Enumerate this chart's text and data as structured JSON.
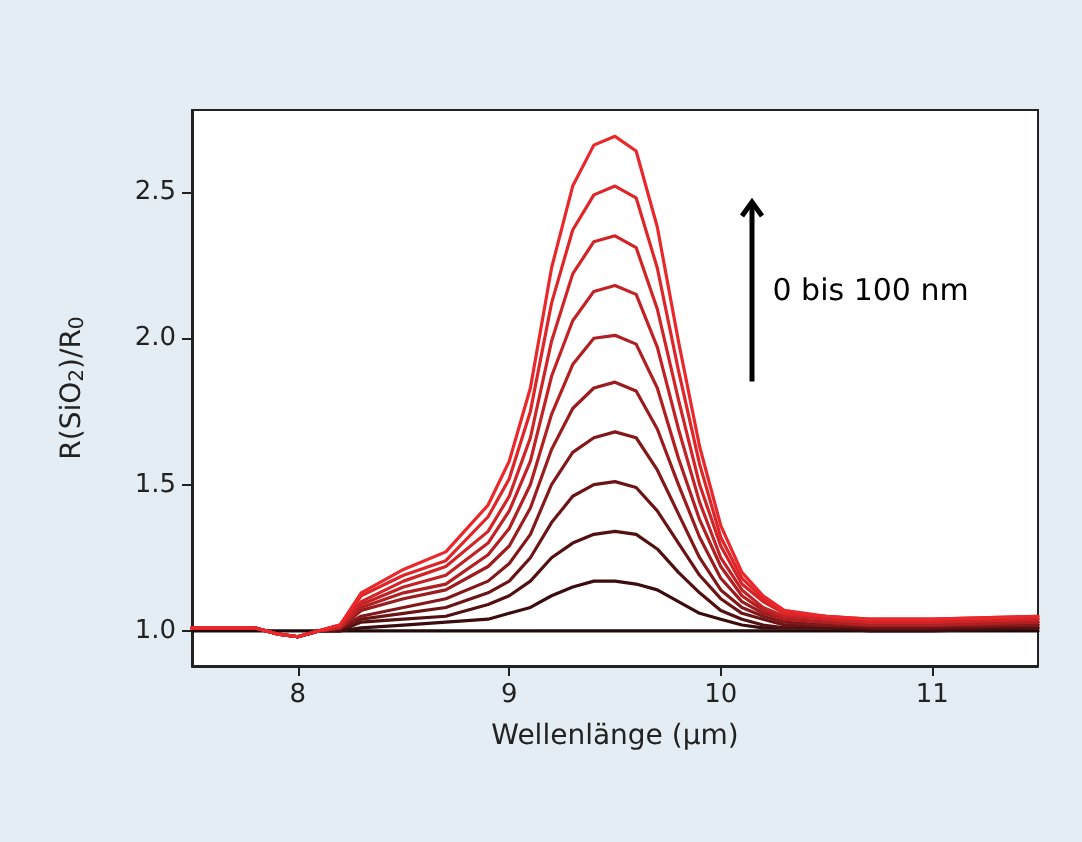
{
  "chart_data": {
    "type": "line",
    "xlabel": "Wellenlänge (µm)",
    "ylabel": "R(SiO$_{2}$)/R$_{0}$",
    "annotations": [
      "0 bis 100 nm"
    ],
    "x": [
      7.5,
      7.7,
      7.8,
      7.9,
      8.0,
      8.1,
      8.2,
      8.3,
      8.5,
      8.7,
      8.9,
      9.0,
      9.1,
      9.2,
      9.3,
      9.4,
      9.5,
      9.6,
      9.7,
      9.8,
      9.9,
      10.0,
      10.1,
      10.2,
      10.3,
      10.5,
      10.7,
      11.0,
      11.5
    ],
    "series": [
      {
        "color": "#1e0a0a",
        "values": [
          1,
          1,
          1,
          1,
          1,
          1,
          1,
          1,
          1,
          1,
          1,
          1,
          1,
          1,
          1,
          1,
          1,
          1,
          1,
          1,
          1,
          1,
          1,
          1,
          1,
          1,
          1,
          1,
          1
        ]
      },
      {
        "color": "#3a0c0d",
        "values": [
          1.01,
          1.01,
          1.01,
          0.99,
          0.98,
          1.0,
          1.0,
          1.01,
          1.02,
          1.03,
          1.04,
          1.06,
          1.08,
          1.12,
          1.15,
          1.17,
          1.17,
          1.16,
          1.14,
          1.1,
          1.06,
          1.04,
          1.02,
          1.01,
          1.01,
          1.01,
          1.0,
          1.0,
          1.01
        ]
      },
      {
        "color": "#521011",
        "values": [
          1.01,
          1.01,
          1.01,
          0.99,
          0.98,
          1.0,
          1.0,
          1.03,
          1.04,
          1.05,
          1.09,
          1.12,
          1.17,
          1.25,
          1.3,
          1.33,
          1.34,
          1.33,
          1.28,
          1.2,
          1.13,
          1.07,
          1.04,
          1.02,
          1.01,
          1.01,
          1.01,
          1.01,
          1.01
        ]
      },
      {
        "color": "#6a1415",
        "values": [
          1.01,
          1.01,
          1.01,
          0.99,
          0.98,
          1.0,
          1.01,
          1.04,
          1.06,
          1.08,
          1.13,
          1.17,
          1.25,
          1.37,
          1.46,
          1.5,
          1.51,
          1.49,
          1.41,
          1.3,
          1.19,
          1.11,
          1.06,
          1.04,
          1.02,
          1.02,
          1.01,
          1.01,
          1.02
        ]
      },
      {
        "color": "#82181a",
        "values": [
          1.01,
          1.01,
          1.01,
          0.99,
          0.98,
          1.0,
          1.01,
          1.05,
          1.08,
          1.11,
          1.17,
          1.23,
          1.33,
          1.5,
          1.61,
          1.66,
          1.68,
          1.66,
          1.55,
          1.4,
          1.25,
          1.14,
          1.08,
          1.05,
          1.03,
          1.02,
          1.02,
          1.02,
          1.02
        ]
      },
      {
        "color": "#9a1c1e",
        "values": [
          1.01,
          1.01,
          1.01,
          0.99,
          0.98,
          1.0,
          1.01,
          1.07,
          1.11,
          1.14,
          1.22,
          1.29,
          1.42,
          1.62,
          1.76,
          1.83,
          1.85,
          1.82,
          1.69,
          1.5,
          1.32,
          1.18,
          1.1,
          1.06,
          1.04,
          1.03,
          1.02,
          1.02,
          1.03
        ]
      },
      {
        "color": "#b01f22",
        "values": [
          1.01,
          1.01,
          1.01,
          0.99,
          0.98,
          1.0,
          1.01,
          1.08,
          1.13,
          1.16,
          1.26,
          1.35,
          1.5,
          1.74,
          1.91,
          2.0,
          2.01,
          1.98,
          1.83,
          1.59,
          1.38,
          1.22,
          1.12,
          1.07,
          1.04,
          1.03,
          1.02,
          1.02,
          1.03
        ]
      },
      {
        "color": "#c22225",
        "values": [
          1.01,
          1.01,
          1.01,
          0.99,
          0.98,
          1.0,
          1.01,
          1.09,
          1.15,
          1.19,
          1.3,
          1.41,
          1.58,
          1.87,
          2.06,
          2.16,
          2.18,
          2.15,
          1.97,
          1.69,
          1.44,
          1.25,
          1.14,
          1.08,
          1.05,
          1.04,
          1.03,
          1.03,
          1.04
        ]
      },
      {
        "color": "#d12427",
        "values": [
          1.01,
          1.01,
          1.01,
          0.99,
          0.98,
          1.0,
          1.02,
          1.1,
          1.17,
          1.22,
          1.34,
          1.46,
          1.66,
          1.99,
          2.22,
          2.33,
          2.35,
          2.31,
          2.1,
          1.79,
          1.5,
          1.29,
          1.16,
          1.1,
          1.06,
          1.04,
          1.03,
          1.03,
          1.04
        ]
      },
      {
        "color": "#de2629",
        "values": [
          1.01,
          1.01,
          1.01,
          0.99,
          0.98,
          1.0,
          1.02,
          1.12,
          1.19,
          1.24,
          1.39,
          1.52,
          1.75,
          2.12,
          2.37,
          2.49,
          2.52,
          2.48,
          2.24,
          1.89,
          1.57,
          1.32,
          1.18,
          1.11,
          1.06,
          1.05,
          1.04,
          1.04,
          1.05
        ]
      },
      {
        "color": "#ea282c",
        "values": [
          1.01,
          1.01,
          1.01,
          0.99,
          0.98,
          1.0,
          1.02,
          1.13,
          1.21,
          1.27,
          1.43,
          1.58,
          1.83,
          2.24,
          2.52,
          2.66,
          2.69,
          2.64,
          2.38,
          1.99,
          1.63,
          1.36,
          1.2,
          1.12,
          1.07,
          1.05,
          1.04,
          1.04,
          1.05
        ]
      }
    ],
    "xlim": [
      7.5,
      11.5
    ],
    "xticks": [
      8,
      9,
      10,
      11
    ],
    "ylim": [
      0.88,
      2.78
    ],
    "yticks": [
      {
        "value": 1,
        "label": "1.0"
      },
      {
        "value": 1.5,
        "label": "1.5"
      },
      {
        "value": 2,
        "label": "2.0"
      },
      {
        "value": 2.5,
        "label": "2.5"
      }
    ],
    "grid": false,
    "marker": "none",
    "line_style": "solid"
  }
}
